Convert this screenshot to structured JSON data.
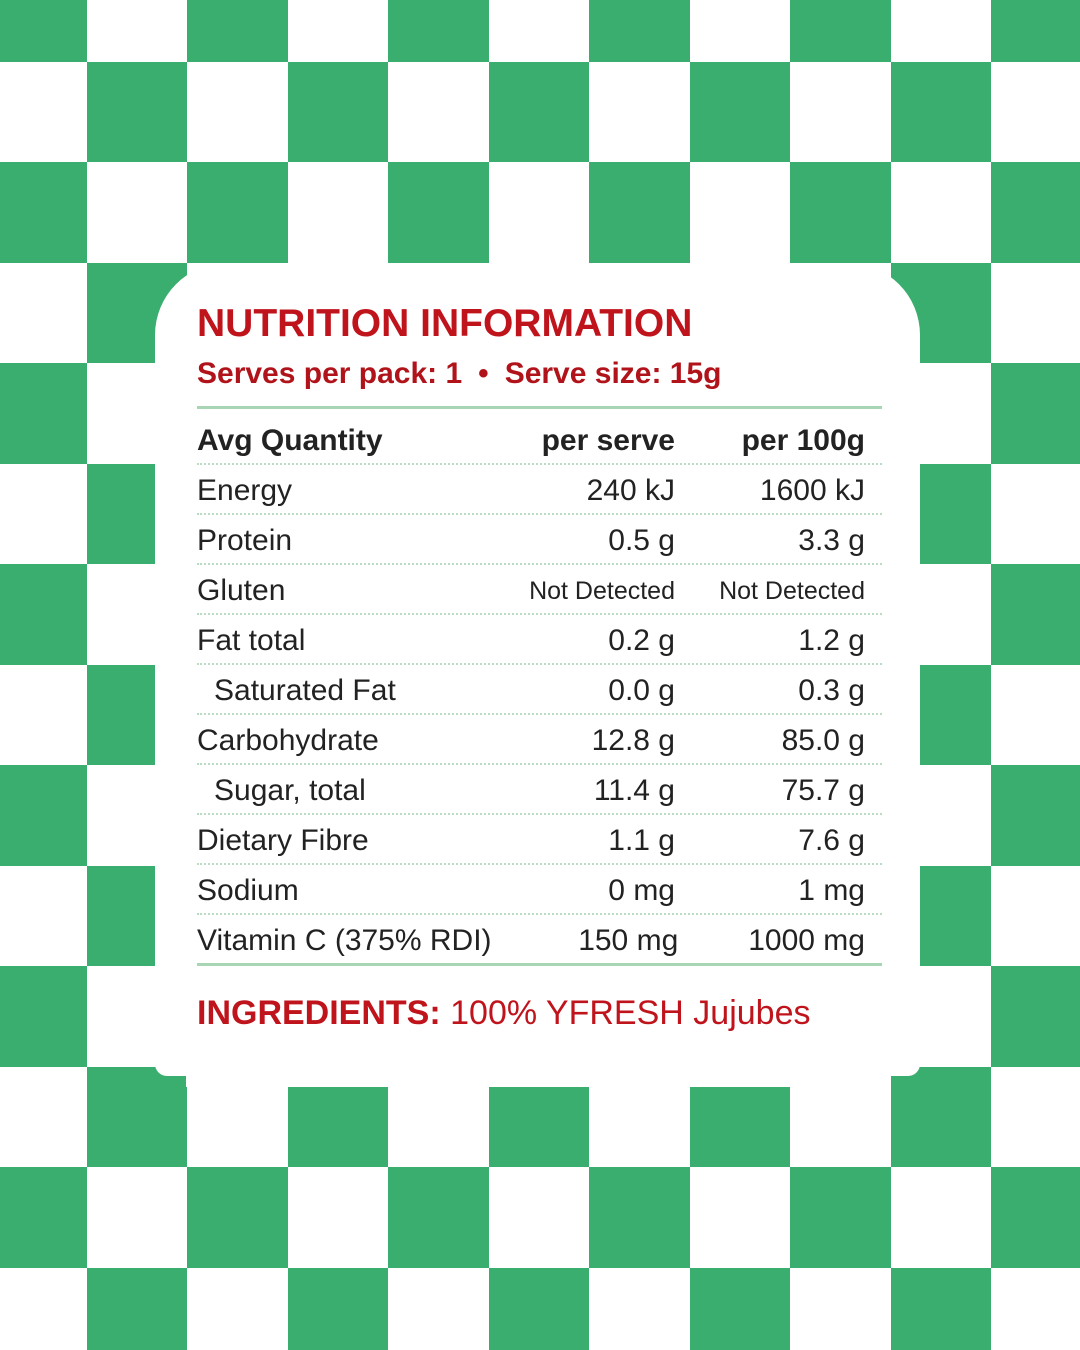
{
  "colors": {
    "checker_green": "#3aae6e",
    "title_red": "#c0141c",
    "rule_green": "#a8d5b4"
  },
  "title": "NUTRITION INFORMATION",
  "serving": {
    "serves_per_pack": "Serves per pack: 1",
    "separator": "•",
    "serve_size": "Serve size: 15g"
  },
  "table": {
    "headers": [
      "Avg Quantity",
      "per serve",
      "per 100g"
    ],
    "rows": [
      {
        "name": "Energy",
        "per_serve": "240 kJ",
        "per_100g": "1600 kJ",
        "indent": false
      },
      {
        "name": "Protein",
        "per_serve": "0.5 g",
        "per_100g": "3.3 g",
        "indent": false
      },
      {
        "name": "Gluten",
        "per_serve": "Not Detected",
        "per_100g": "Not Detected",
        "indent": false
      },
      {
        "name": "Fat total",
        "per_serve": "0.2 g",
        "per_100g": "1.2 g",
        "indent": false
      },
      {
        "name": "Saturated Fat",
        "per_serve": "0.0 g",
        "per_100g": "0.3 g",
        "indent": true
      },
      {
        "name": "Carbohydrate",
        "per_serve": "12.8 g",
        "per_100g": "85.0 g",
        "indent": false
      },
      {
        "name": "Sugar, total",
        "per_serve": "11.4 g",
        "per_100g": "75.7 g",
        "indent": true
      },
      {
        "name": "Dietary Fibre",
        "per_serve": "1.1 g",
        "per_100g": "7.6 g",
        "indent": false
      },
      {
        "name": "Sodium",
        "per_serve": "0 mg",
        "per_100g": "1 mg",
        "indent": false
      },
      {
        "name": "Vitamin C (375% RDI)",
        "per_serve": "150 mg",
        "per_100g": "1000 mg",
        "indent": false
      }
    ]
  },
  "ingredients": {
    "label": "INGREDIENTS:",
    "value": "100% YFRESH Jujubes"
  }
}
